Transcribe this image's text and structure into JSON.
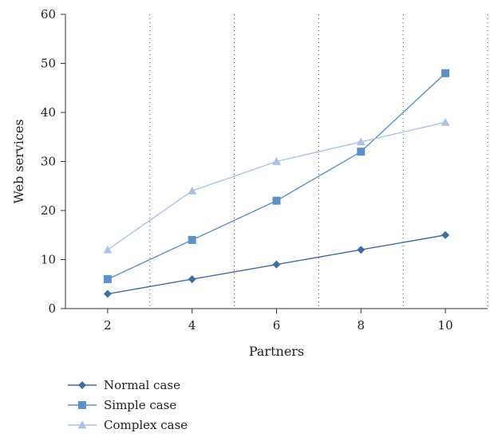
{
  "chart_data": {
    "type": "line",
    "title": "",
    "xlabel": "Partners",
    "ylabel": "Web services",
    "x": [
      2,
      4,
      6,
      8,
      10
    ],
    "xlim": [
      1,
      11
    ],
    "ylim": [
      0,
      60
    ],
    "yticks": [
      0,
      10,
      20,
      30,
      40,
      50,
      60
    ],
    "grid": "vertical dotted lines between categories",
    "legend_position": "bottom-left",
    "series": [
      {
        "name": "Normal case",
        "marker": "diamond",
        "color": "#3f6ea3",
        "values": [
          3,
          6,
          9,
          12,
          15
        ]
      },
      {
        "name": "Simple case",
        "marker": "square",
        "color": "#5b90c8",
        "values": [
          6,
          14,
          22,
          32,
          48
        ]
      },
      {
        "name": "Complex case",
        "marker": "triangle",
        "color": "#a9c3e3",
        "values": [
          12,
          24,
          30,
          34,
          38
        ]
      }
    ]
  }
}
